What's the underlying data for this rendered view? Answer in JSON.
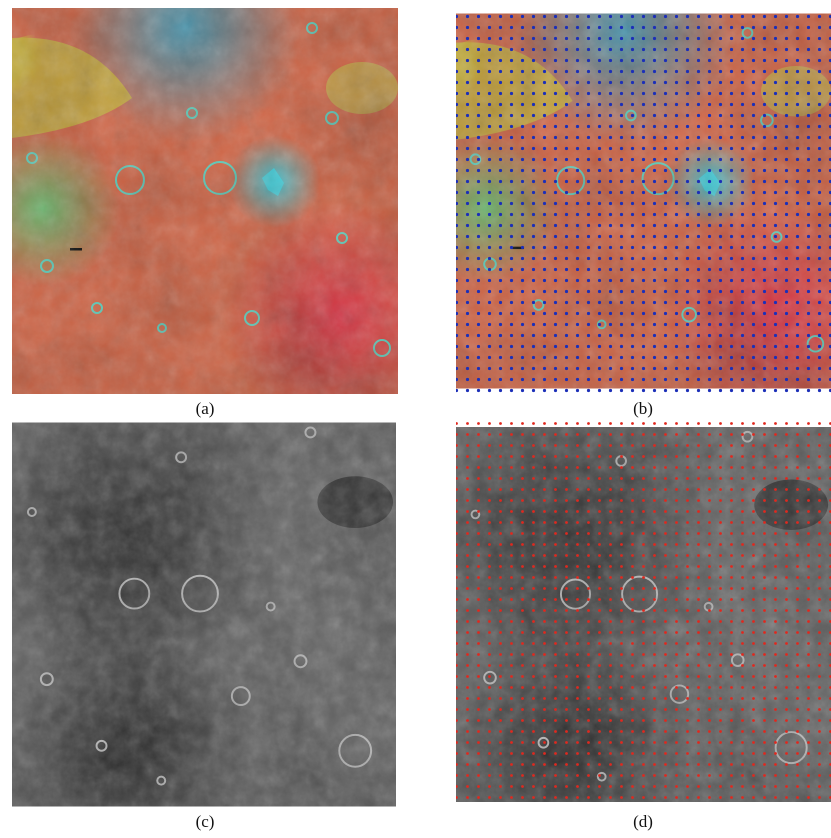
{
  "figure": {
    "panels": [
      {
        "caption": "(a)"
      },
      {
        "caption": "(b)"
      },
      {
        "caption": "(c)"
      },
      {
        "caption": "(d)"
      }
    ]
  }
}
